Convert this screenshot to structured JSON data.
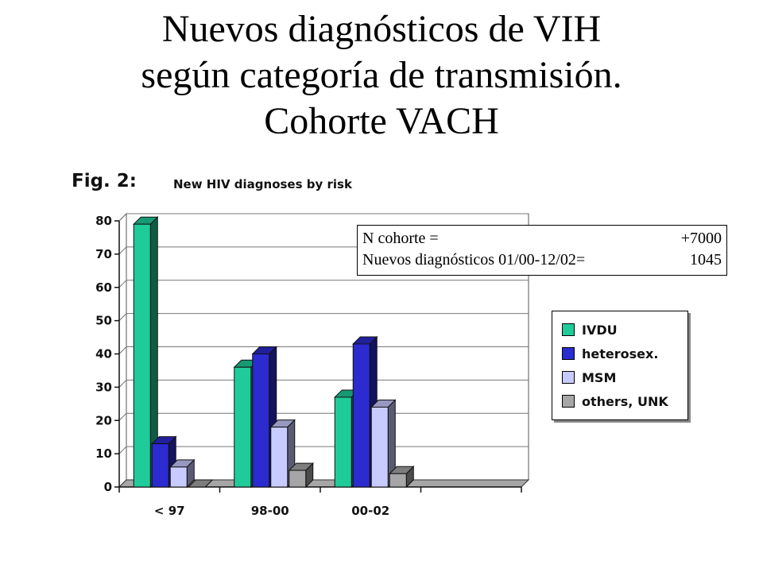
{
  "slide": {
    "title_lines": [
      "Nuevos diagnósticos de VIH",
      "según categoría de transmisión.",
      "Cohorte VACH"
    ]
  },
  "figure": {
    "label": "Fig. 2:",
    "caption": "New HIV diagnoses by risk"
  },
  "infobox": {
    "rows": [
      {
        "label": "N cohorte =",
        "value": "+7000"
      },
      {
        "label": "Nuevos diagnósticos 01/00-12/02=",
        "value": "1045"
      }
    ]
  },
  "chart_data": {
    "type": "bar",
    "title": "New HIV diagnoses by risk",
    "categories": [
      "< 97",
      "98-00",
      "00-02"
    ],
    "series": [
      {
        "name": "IVDU",
        "color": "#1fcc99",
        "values": [
          79,
          36,
          27
        ]
      },
      {
        "name": "heterosex.",
        "color": "#2b2bd0",
        "values": [
          13,
          40,
          43
        ]
      },
      {
        "name": "MSM",
        "color": "#c8cbff",
        "values": [
          6,
          18,
          24
        ]
      },
      {
        "name": "others, UNK",
        "color": "#a6a6a6",
        "values": [
          0,
          5,
          4
        ]
      }
    ],
    "ylim": [
      0,
      80
    ],
    "yticks": [
      0,
      10,
      20,
      30,
      40,
      50,
      60,
      70,
      80
    ],
    "xlabel": "",
    "ylabel": "",
    "grid": true,
    "legend": "right",
    "three_d": true
  }
}
